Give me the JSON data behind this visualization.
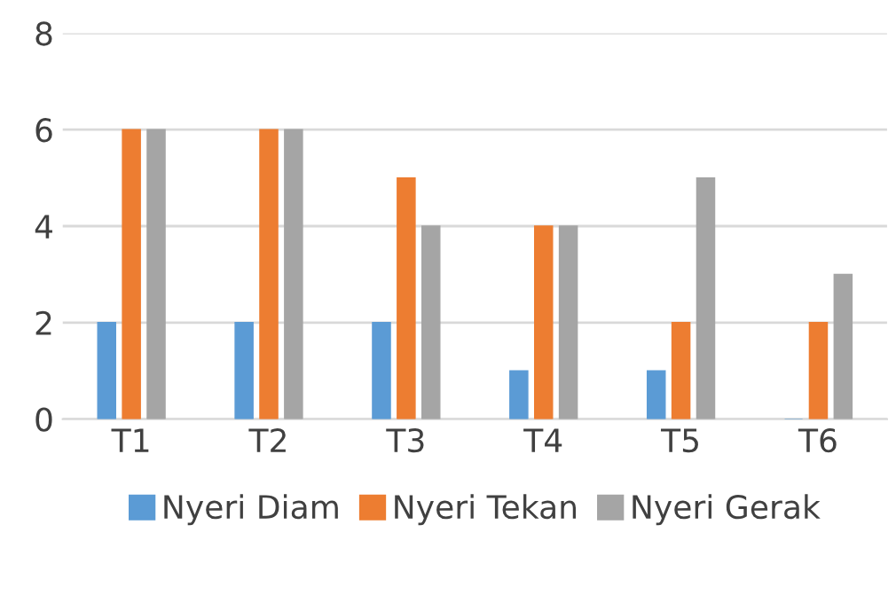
{
  "chart_data": {
    "type": "bar",
    "categories": [
      "T1",
      "T2",
      "T3",
      "T4",
      "T5",
      "T6"
    ],
    "series": [
      {
        "name": "Nyeri Diam",
        "color": "#5b9bd5",
        "values": [
          2,
          2,
          2,
          1,
          1,
          0
        ]
      },
      {
        "name": "Nyeri Tekan",
        "color": "#ed7d31",
        "values": [
          6,
          6,
          5,
          4,
          2,
          2
        ]
      },
      {
        "name": "Nyeri Gerak",
        "color": "#a5a5a5",
        "values": [
          6,
          6,
          4,
          4,
          5,
          3
        ]
      }
    ],
    "ylim": [
      0,
      8
    ],
    "yticks": [
      0,
      2,
      4,
      6,
      8
    ],
    "grid": "y",
    "legend": "bottom"
  }
}
